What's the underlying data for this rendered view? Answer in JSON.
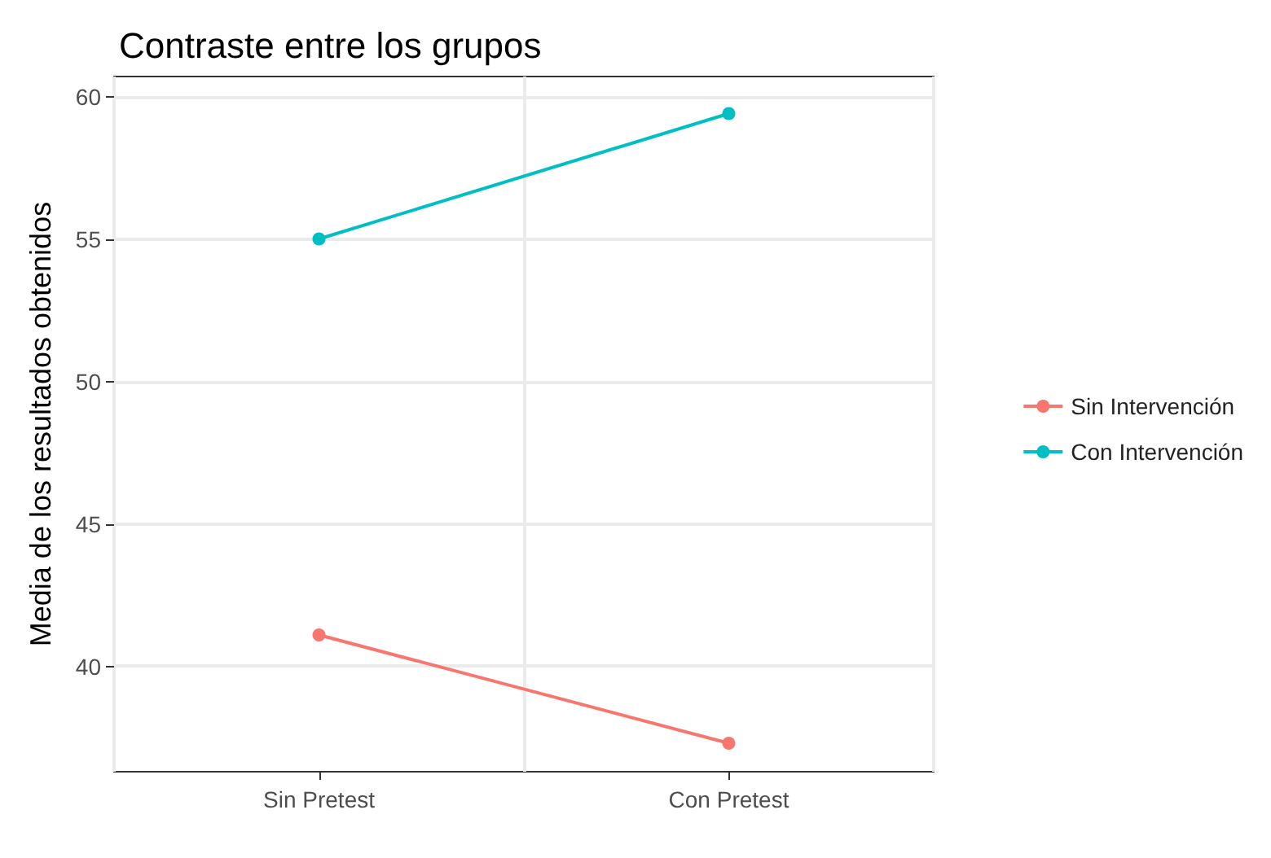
{
  "chart_data": {
    "type": "line",
    "title": "Contraste entre los grupos",
    "ylabel": "Media de los resultados obtenidos",
    "categories": [
      "Sin Pretest",
      "Con Pretest"
    ],
    "series": [
      {
        "name": "Sin Intervención",
        "color": "#f8766d",
        "values": [
          41.1,
          37.3
        ]
      },
      {
        "name": "Con Intervención",
        "color": "#00bfc4",
        "values": [
          55,
          59.4
        ]
      }
    ],
    "ylim": [
      36.3,
      60.7
    ],
    "yticks": [
      40,
      45,
      50,
      55,
      60
    ],
    "grid": true,
    "legend": "right",
    "marker": "circle",
    "line_style": "solid"
  }
}
